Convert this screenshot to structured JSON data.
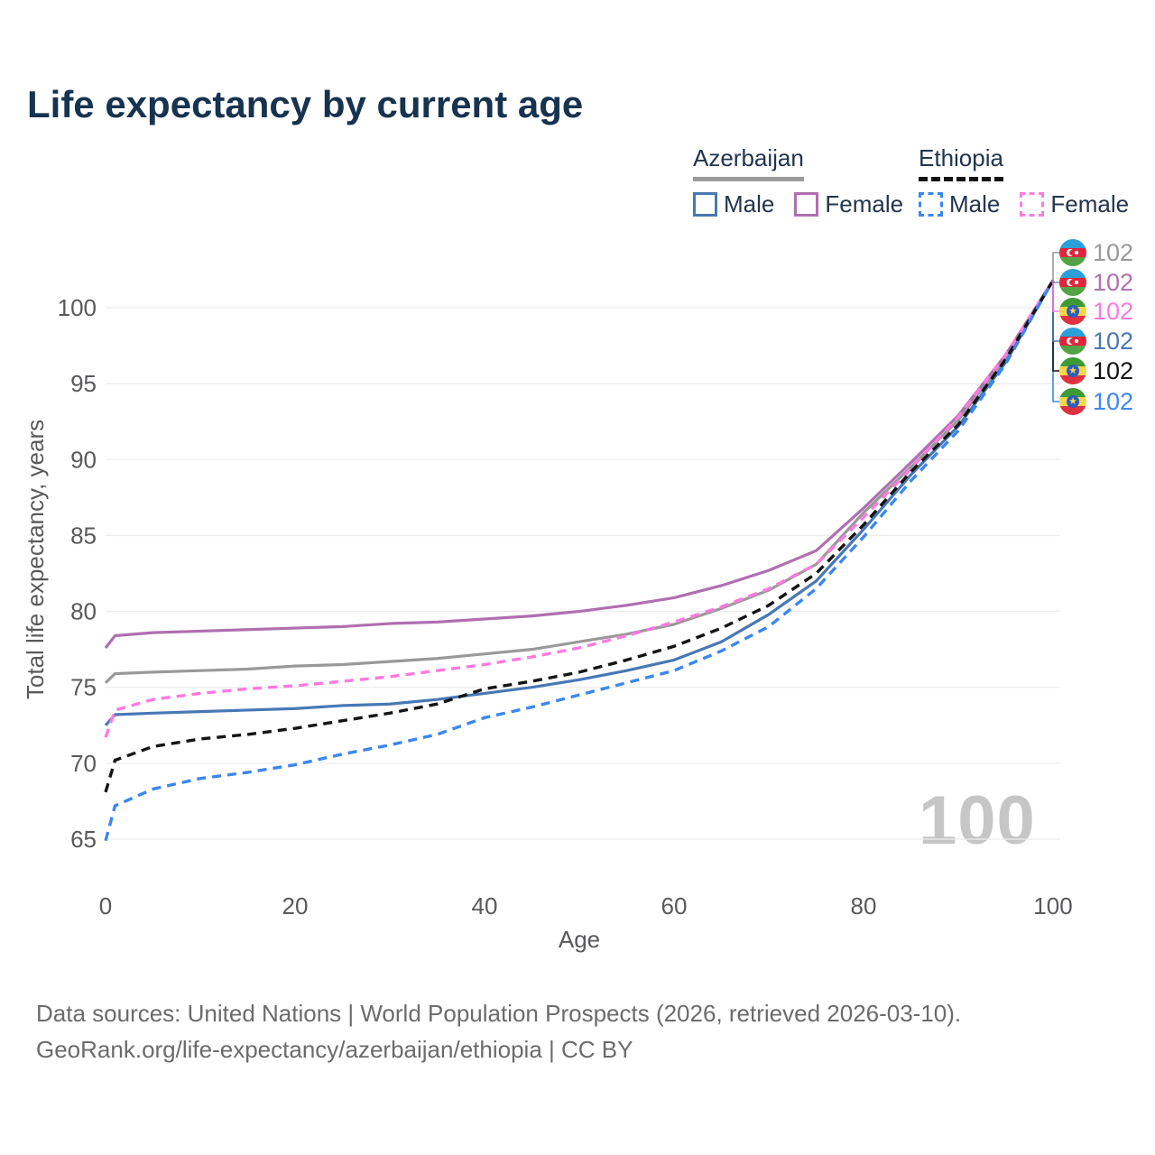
{
  "title": "Life expectancy by current age",
  "legend": {
    "groups": [
      {
        "label": "Azerbaijan",
        "line_style": "solid",
        "line_color": "#9a9a9a",
        "items": [
          {
            "label": "Male",
            "color": "#4878b4",
            "style": "solid"
          },
          {
            "label": "Female",
            "color": "#b06fb0",
            "style": "solid"
          }
        ]
      },
      {
        "label": "Ethiopia",
        "line_style": "dashed",
        "line_color": "#141414",
        "items": [
          {
            "label": "Male",
            "color": "#3b87f0",
            "style": "dashed"
          },
          {
            "label": "Female",
            "color": "#ff7ae0",
            "style": "dashed"
          }
        ]
      }
    ]
  },
  "end_labels": [
    {
      "country": "Azerbaijan",
      "series": "Azerbaijan Both sexes",
      "value": "102",
      "color": "#999999"
    },
    {
      "country": "Azerbaijan",
      "series": "Azerbaijan Female",
      "value": "102",
      "color": "#b06fb0"
    },
    {
      "country": "Ethiopia",
      "series": "Ethiopia Female",
      "value": "102",
      "color": "#ff7ae0"
    },
    {
      "country": "Azerbaijan",
      "series": "Azerbaijan Male",
      "value": "102",
      "color": "#4878b4"
    },
    {
      "country": "Ethiopia",
      "series": "Ethiopia Both sexes",
      "value": "102",
      "color": "#141414"
    },
    {
      "country": "Ethiopia",
      "series": "Ethiopia Male",
      "value": "102",
      "color": "#3b87f0"
    }
  ],
  "watermark": "100",
  "footer": {
    "line1": "Data sources: United Nations | World Population Prospects (2026, retrieved 2026-03-10).",
    "line2": "GeoRank.org/life-expectancy/azerbaijan/ethiopia | CC BY"
  },
  "chart_data": {
    "type": "line",
    "title": "Life expectancy by current age",
    "xlabel": "Age",
    "ylabel": "Total life expectancy, years",
    "xlim": [
      0,
      100
    ],
    "ylim": [
      63.5,
      103
    ],
    "x_ticks": [
      0,
      20,
      40,
      60,
      80,
      100
    ],
    "y_ticks": [
      65,
      70,
      75,
      80,
      85,
      90,
      95,
      100
    ],
    "grid": "horizontal-only",
    "legend_position": "top-right",
    "x": [
      0,
      1,
      5,
      10,
      15,
      20,
      25,
      30,
      35,
      40,
      45,
      50,
      55,
      60,
      65,
      70,
      75,
      80,
      85,
      90,
      95,
      100
    ],
    "series": [
      {
        "name": "Azerbaijan Both sexes",
        "country": "Azerbaijan",
        "sex": "Both",
        "color": "#999999",
        "style": "solid",
        "values": [
          75.3,
          75.9,
          76.0,
          76.1,
          76.2,
          76.4,
          76.5,
          76.7,
          76.9,
          77.2,
          77.5,
          78.0,
          78.5,
          79.15,
          80.2,
          81.4,
          83.1,
          86.5,
          89.5,
          92.6,
          96.7,
          101.8
        ]
      },
      {
        "name": "Azerbaijan Female",
        "country": "Azerbaijan",
        "sex": "Female",
        "color": "#b06fb0",
        "style": "solid",
        "values": [
          77.6,
          78.4,
          78.6,
          78.7,
          78.8,
          78.9,
          79.0,
          79.2,
          79.3,
          79.5,
          79.7,
          80.0,
          80.4,
          80.9,
          81.7,
          82.7,
          84.0,
          86.8,
          89.8,
          92.9,
          96.9,
          101.8
        ]
      },
      {
        "name": "Azerbaijan Male",
        "country": "Azerbaijan",
        "sex": "Male",
        "color": "#4878b4",
        "style": "solid",
        "values": [
          72.5,
          73.2,
          73.3,
          73.4,
          73.5,
          73.6,
          73.8,
          73.9,
          74.2,
          74.6,
          75.0,
          75.5,
          76.1,
          76.8,
          78.0,
          79.8,
          82.0,
          85.4,
          89.0,
          92.2,
          96.4,
          101.8
        ]
      },
      {
        "name": "Ethiopia Female",
        "country": "Ethiopia",
        "sex": "Female",
        "color": "#ff7ae0",
        "style": "dashed",
        "values": [
          71.7,
          73.5,
          74.2,
          74.6,
          74.9,
          75.1,
          75.4,
          75.7,
          76.1,
          76.5,
          77.0,
          77.6,
          78.4,
          79.3,
          80.3,
          81.5,
          83.1,
          86.2,
          89.4,
          92.8,
          96.9,
          101.8
        ]
      },
      {
        "name": "Ethiopia Both sexes",
        "country": "Ethiopia",
        "sex": "Both",
        "color": "#141414",
        "style": "dashed",
        "values": [
          68.1,
          70.2,
          71.1,
          71.6,
          71.9,
          72.3,
          72.8,
          73.3,
          73.9,
          74.9,
          75.4,
          76.0,
          76.8,
          77.7,
          78.9,
          80.4,
          82.5,
          85.7,
          89.2,
          92.3,
          96.6,
          101.8
        ]
      },
      {
        "name": "Ethiopia Male",
        "country": "Ethiopia",
        "sex": "Male",
        "color": "#3b87f0",
        "style": "dashed",
        "values": [
          64.9,
          67.2,
          68.3,
          69.0,
          69.4,
          69.9,
          70.6,
          71.2,
          71.9,
          73.0,
          73.7,
          74.5,
          75.3,
          76.1,
          77.4,
          79.0,
          81.5,
          84.9,
          88.6,
          91.9,
          96.3,
          101.8
        ]
      }
    ]
  }
}
